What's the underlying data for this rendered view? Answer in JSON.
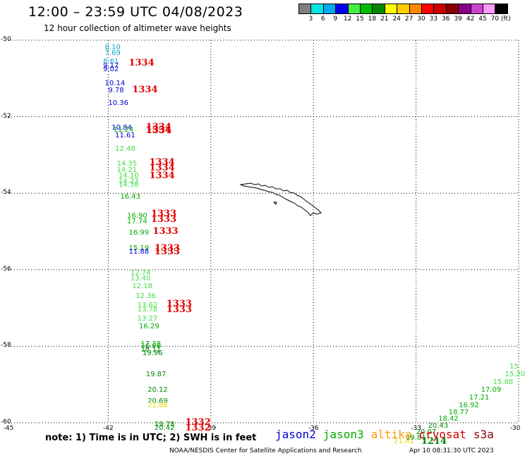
{
  "header": {
    "title": "12:00 – 23:59 UTC 04/08/2023",
    "subtitle": "12 hour collection of altimeter wave heights"
  },
  "colorbar": {
    "unit_label": "(ft)",
    "bins": [
      {
        "color": "#808080",
        "label": ""
      },
      {
        "color": "#00e5e5",
        "label": "3"
      },
      {
        "color": "#00aaee",
        "label": "6"
      },
      {
        "color": "#0000ee",
        "label": "9"
      },
      {
        "color": "#44ee44",
        "label": "12"
      },
      {
        "color": "#00bb00",
        "label": "15"
      },
      {
        "color": "#008800",
        "label": "18"
      },
      {
        "color": "#ffff00",
        "label": "21"
      },
      {
        "color": "#ffcc00",
        "label": "24"
      },
      {
        "color": "#ff8800",
        "label": "27"
      },
      {
        "color": "#ff0000",
        "label": "30"
      },
      {
        "color": "#cc0000",
        "label": "33"
      },
      {
        "color": "#880000",
        "label": "36"
      },
      {
        "color": "#880088",
        "label": "39"
      },
      {
        "color": "#cc44cc",
        "label": "42"
      },
      {
        "color": "#ff99ff",
        "label": "45"
      },
      {
        "color": "#000000",
        "label": "70"
      }
    ]
  },
  "axes": {
    "lat_labels": [
      "-50",
      "-52",
      "-54",
      "-56",
      "-58",
      "-60"
    ],
    "lon_labels": [
      "-45",
      "-42",
      "-39",
      "-36",
      "-33",
      "-30"
    ]
  },
  "observations": [
    {
      "lon": -42.1,
      "lat": -50.2,
      "value": "8.10",
      "color": "#00aacc"
    },
    {
      "lon": -42.1,
      "lat": -50.35,
      "value": "7.69",
      "color": "#00aacc"
    },
    {
      "lon": -42.15,
      "lat": -50.58,
      "value": "8.61",
      "color": "#00aacc"
    },
    {
      "lon": -42.15,
      "lat": -50.68,
      "value": "9.17",
      "color": "#0000dd"
    },
    {
      "lon": -42.15,
      "lat": -50.78,
      "value": "9.02",
      "color": "#0000dd"
    },
    {
      "lon": -42.1,
      "lat": -51.15,
      "value": "10.14",
      "color": "#0000dd"
    },
    {
      "lon": -42.0,
      "lat": -51.32,
      "value": "9.78",
      "color": "#0000dd"
    },
    {
      "lon": -42.0,
      "lat": -51.65,
      "value": "10.36",
      "color": "#0000dd"
    },
    {
      "lon": -41.9,
      "lat": -52.3,
      "value": "10.84",
      "color": "#0000dd"
    },
    {
      "lon": -41.85,
      "lat": -52.35,
      "value": "11.24",
      "color": "#00aa00"
    },
    {
      "lon": -41.8,
      "lat": -52.5,
      "value": "11.61",
      "color": "#0000dd"
    },
    {
      "lon": -41.8,
      "lat": -52.85,
      "value": "12.48",
      "color": "#44dd44"
    },
    {
      "lon": -41.75,
      "lat": -53.25,
      "value": "14.35",
      "color": "#44dd44"
    },
    {
      "lon": -41.75,
      "lat": -53.4,
      "value": "14.21",
      "color": "#44dd44"
    },
    {
      "lon": -41.7,
      "lat": -53.55,
      "value": "14.10",
      "color": "#44dd44"
    },
    {
      "lon": -41.7,
      "lat": -53.7,
      "value": "14.27",
      "color": "#44dd44"
    },
    {
      "lon": -41.7,
      "lat": -53.8,
      "value": "14.38",
      "color": "#44dd44"
    },
    {
      "lon": -41.65,
      "lat": -54.1,
      "value": "16.43",
      "color": "#00aa00"
    },
    {
      "lon": -41.45,
      "lat": -54.6,
      "value": "16.90",
      "color": "#00aa00"
    },
    {
      "lon": -41.45,
      "lat": -54.75,
      "value": "17.74",
      "color": "#00aa00"
    },
    {
      "lon": -41.4,
      "lat": -55.05,
      "value": "16.99",
      "color": "#00aa00"
    },
    {
      "lon": -41.4,
      "lat": -55.45,
      "value": "15.19",
      "color": "#00aa00"
    },
    {
      "lon": -41.4,
      "lat": -55.55,
      "value": "11.88",
      "color": "#0000dd"
    },
    {
      "lon": -41.35,
      "lat": -56.1,
      "value": "12.74",
      "color": "#44dd44"
    },
    {
      "lon": -41.35,
      "lat": -56.25,
      "value": "13.40",
      "color": "#44dd44"
    },
    {
      "lon": -41.3,
      "lat": -56.45,
      "value": "12.18",
      "color": "#44dd44"
    },
    {
      "lon": -41.2,
      "lat": -56.7,
      "value": "12.36",
      "color": "#44dd44"
    },
    {
      "lon": -41.15,
      "lat": -56.95,
      "value": "13.62",
      "color": "#44dd44"
    },
    {
      "lon": -41.15,
      "lat": -57.05,
      "value": "13.78",
      "color": "#44dd44"
    },
    {
      "lon": -41.15,
      "lat": -57.3,
      "value": "13.27",
      "color": "#44dd44"
    },
    {
      "lon": -41.1,
      "lat": -57.5,
      "value": "16.29",
      "color": "#00aa00"
    },
    {
      "lon": -41.05,
      "lat": -57.95,
      "value": "17.28",
      "color": "#00aa00"
    },
    {
      "lon": -41.05,
      "lat": -58.02,
      "value": "16.96",
      "color": "#00aa00"
    },
    {
      "lon": -41.05,
      "lat": -58.1,
      "value": "18.11",
      "color": "#008800"
    },
    {
      "lon": -41.0,
      "lat": -58.2,
      "value": "19.96",
      "color": "#008800"
    },
    {
      "lon": -40.9,
      "lat": -58.75,
      "value": "19.87",
      "color": "#008800"
    },
    {
      "lon": -40.85,
      "lat": -59.15,
      "value": "20.12",
      "color": "#008800"
    },
    {
      "lon": -40.85,
      "lat": -59.45,
      "value": "20.69",
      "color": "#008800"
    },
    {
      "lon": -40.85,
      "lat": -59.55,
      "value": "21.86",
      "color": "#dddd00"
    },
    {
      "lon": -40.65,
      "lat": -60.05,
      "value": "19.78",
      "color": "#008800"
    },
    {
      "lon": -40.65,
      "lat": -60.15,
      "value": "20.42",
      "color": "#008800"
    },
    {
      "lon": -33.65,
      "lat": -60.5,
      "value": "21.41",
      "color": "#dddd00"
    },
    {
      "lon": -33.3,
      "lat": -60.4,
      "value": "19.81",
      "color": "#008800"
    },
    {
      "lon": -33.0,
      "lat": -60.25,
      "value": "20.07",
      "color": "#008800"
    },
    {
      "lon": -32.65,
      "lat": -60.1,
      "value": "20.43",
      "color": "#008800"
    },
    {
      "lon": -32.35,
      "lat": -59.9,
      "value": "18.42",
      "color": "#00aa00"
    },
    {
      "lon": -32.05,
      "lat": -59.75,
      "value": "18.77",
      "color": "#00aa00"
    },
    {
      "lon": -31.75,
      "lat": -59.55,
      "value": "16.92",
      "color": "#00aa00"
    },
    {
      "lon": -31.45,
      "lat": -59.35,
      "value": "17.21",
      "color": "#00aa00"
    },
    {
      "lon": -31.1,
      "lat": -59.15,
      "value": "17.09",
      "color": "#00aa00"
    },
    {
      "lon": -30.75,
      "lat": -58.95,
      "value": "15.88",
      "color": "#44dd44"
    },
    {
      "lon": -30.4,
      "lat": -58.75,
      "value": "15.20",
      "color": "#44dd44"
    },
    {
      "lon": -30.1,
      "lat": -58.55,
      "value": "15",
      "color": "#44dd44"
    }
  ],
  "pass_labels": [
    {
      "lon": -41.4,
      "lat": -50.6,
      "text": "1334"
    },
    {
      "lon": -41.3,
      "lat": -51.3,
      "text": "1334"
    },
    {
      "lon": -40.9,
      "lat": -52.28,
      "text": "1334"
    },
    {
      "lon": -40.9,
      "lat": -52.35,
      "text": "1334"
    },
    {
      "lon": -40.9,
      "lat": -52.38,
      "text": "1334"
    },
    {
      "lon": -40.8,
      "lat": -53.2,
      "text": "1334"
    },
    {
      "lon": -40.8,
      "lat": -53.35,
      "text": "1334"
    },
    {
      "lon": -40.8,
      "lat": -53.55,
      "text": "1334"
    },
    {
      "lon": -40.75,
      "lat": -54.55,
      "text": "1333"
    },
    {
      "lon": -40.75,
      "lat": -54.7,
      "text": "1333"
    },
    {
      "lon": -40.7,
      "lat": -55.0,
      "text": "1333"
    },
    {
      "lon": -40.65,
      "lat": -55.45,
      "text": "1333"
    },
    {
      "lon": -40.65,
      "lat": -55.55,
      "text": "1333"
    },
    {
      "lon": -40.3,
      "lat": -56.9,
      "text": "1333"
    },
    {
      "lon": -40.3,
      "lat": -57.05,
      "text": "1333"
    },
    {
      "lon": -39.75,
      "lat": -60.0,
      "text": "1332"
    },
    {
      "lon": -39.75,
      "lat": -60.15,
      "text": "1332"
    },
    {
      "lon": -32.85,
      "lat": -60.5,
      "text": "1214"
    }
  ],
  "footer": {
    "note": "note: 1) Time is in UTC; 2) SWH is in feet",
    "satellites": [
      {
        "name": "jason2",
        "color": "#0000cc"
      },
      {
        "name": "jason3",
        "color": "#00aa00"
      },
      {
        "name": "altika",
        "color": "#ff9900"
      },
      {
        "name": "cryosat",
        "color": "#cc0000"
      },
      {
        "name": "s3a",
        "color": "#880000"
      }
    ],
    "credit": "NOAA/NESDIS Center for Satellite Applications and Research",
    "timestamp": "Apr 10 08:31:30 UTC 2023"
  }
}
